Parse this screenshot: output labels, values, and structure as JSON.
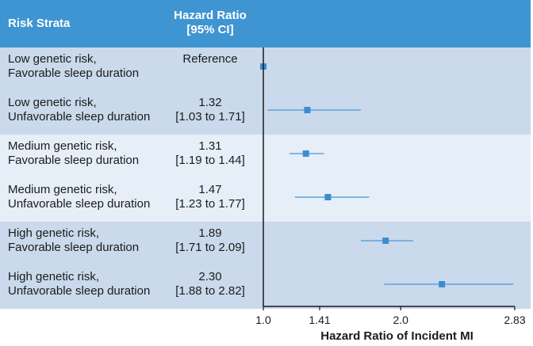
{
  "chart_data": {
    "type": "forest",
    "title": "",
    "header": {
      "strata": "Risk Strata",
      "hr_line1": "Hazard Ratio",
      "hr_line2": "[95% CI]"
    },
    "xlabel": "Hazard Ratio of Incident MI",
    "xlim": [
      1.0,
      2.83
    ],
    "xticks": [
      1.0,
      1.41,
      2.0,
      2.83
    ],
    "xtick_labels": [
      "1.0",
      "1.41",
      "2.0",
      "2.83"
    ],
    "reference_value": 1.0,
    "rows": [
      {
        "label1": "Low genetic risk,",
        "label2": "Favorable sleep duration",
        "hr_text": "Reference",
        "ci_text": "",
        "hr": 1.0,
        "lo": 1.0,
        "hi": 1.0
      },
      {
        "label1": "Low genetic risk,",
        "label2": "Unfavorable sleep duration",
        "hr_text": "1.32",
        "ci_text": "[1.03 to 1.71]",
        "hr": 1.32,
        "lo": 1.03,
        "hi": 1.71
      },
      {
        "label1": "Medium genetic risk,",
        "label2": "Favorable sleep duration",
        "hr_text": "1.31",
        "ci_text": "[1.19 to 1.44]",
        "hr": 1.31,
        "lo": 1.19,
        "hi": 1.44
      },
      {
        "label1": "Medium genetic risk,",
        "label2": "Unfavorable sleep duration",
        "hr_text": "1.47",
        "ci_text": "[1.23 to 1.77]",
        "hr": 1.47,
        "lo": 1.23,
        "hi": 1.77
      },
      {
        "label1": "High genetic risk,",
        "label2": "Favorable sleep duration",
        "hr_text": "1.89",
        "ci_text": "[1.71 to 2.09]",
        "hr": 1.89,
        "lo": 1.71,
        "hi": 2.09
      },
      {
        "label1": "High genetic risk,",
        "label2": "Unfavorable sleep duration",
        "hr_text": "2.30",
        "ci_text": "[1.88 to 2.82]",
        "hr": 2.3,
        "lo": 1.88,
        "hi": 2.82
      }
    ],
    "colors": {
      "header": "#3f95d1",
      "band_dark": "#cad9ec",
      "band_light": "#e6eef8",
      "marker": "#3a8ed0",
      "ci_line": "#5ea3da",
      "axis": "#1b1b1b"
    }
  }
}
